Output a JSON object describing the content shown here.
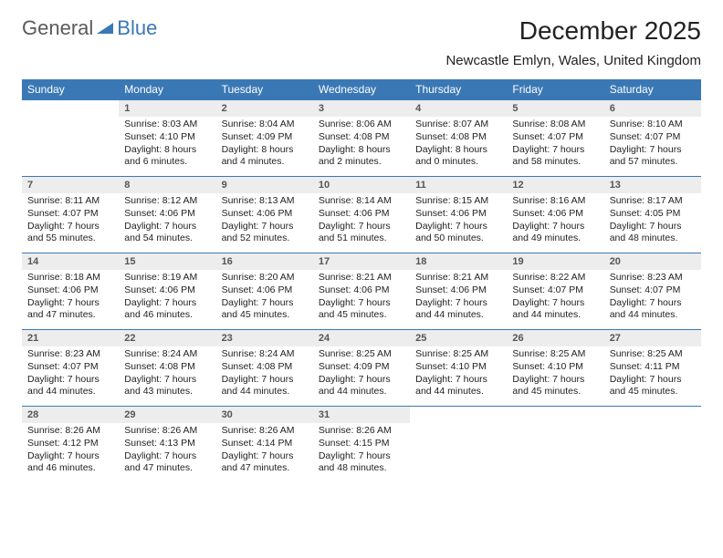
{
  "logo": {
    "text1": "General",
    "text2": "Blue"
  },
  "title": "December 2025",
  "location": "Newcastle Emlyn, Wales, United Kingdom",
  "colors": {
    "header_bg": "#3a78b5",
    "header_text": "#ffffff",
    "daynum_bg": "#ededed",
    "daynum_text": "#555555",
    "body_text": "#222222",
    "border": "#3a78b5"
  },
  "weekdays": [
    "Sunday",
    "Monday",
    "Tuesday",
    "Wednesday",
    "Thursday",
    "Friday",
    "Saturday"
  ],
  "weeks": [
    [
      {
        "n": "",
        "sr": "",
        "ss": "",
        "dl": ""
      },
      {
        "n": "1",
        "sr": "Sunrise: 8:03 AM",
        "ss": "Sunset: 4:10 PM",
        "dl": "Daylight: 8 hours and 6 minutes."
      },
      {
        "n": "2",
        "sr": "Sunrise: 8:04 AM",
        "ss": "Sunset: 4:09 PM",
        "dl": "Daylight: 8 hours and 4 minutes."
      },
      {
        "n": "3",
        "sr": "Sunrise: 8:06 AM",
        "ss": "Sunset: 4:08 PM",
        "dl": "Daylight: 8 hours and 2 minutes."
      },
      {
        "n": "4",
        "sr": "Sunrise: 8:07 AM",
        "ss": "Sunset: 4:08 PM",
        "dl": "Daylight: 8 hours and 0 minutes."
      },
      {
        "n": "5",
        "sr": "Sunrise: 8:08 AM",
        "ss": "Sunset: 4:07 PM",
        "dl": "Daylight: 7 hours and 58 minutes."
      },
      {
        "n": "6",
        "sr": "Sunrise: 8:10 AM",
        "ss": "Sunset: 4:07 PM",
        "dl": "Daylight: 7 hours and 57 minutes."
      }
    ],
    [
      {
        "n": "7",
        "sr": "Sunrise: 8:11 AM",
        "ss": "Sunset: 4:07 PM",
        "dl": "Daylight: 7 hours and 55 minutes."
      },
      {
        "n": "8",
        "sr": "Sunrise: 8:12 AM",
        "ss": "Sunset: 4:06 PM",
        "dl": "Daylight: 7 hours and 54 minutes."
      },
      {
        "n": "9",
        "sr": "Sunrise: 8:13 AM",
        "ss": "Sunset: 4:06 PM",
        "dl": "Daylight: 7 hours and 52 minutes."
      },
      {
        "n": "10",
        "sr": "Sunrise: 8:14 AM",
        "ss": "Sunset: 4:06 PM",
        "dl": "Daylight: 7 hours and 51 minutes."
      },
      {
        "n": "11",
        "sr": "Sunrise: 8:15 AM",
        "ss": "Sunset: 4:06 PM",
        "dl": "Daylight: 7 hours and 50 minutes."
      },
      {
        "n": "12",
        "sr": "Sunrise: 8:16 AM",
        "ss": "Sunset: 4:06 PM",
        "dl": "Daylight: 7 hours and 49 minutes."
      },
      {
        "n": "13",
        "sr": "Sunrise: 8:17 AM",
        "ss": "Sunset: 4:05 PM",
        "dl": "Daylight: 7 hours and 48 minutes."
      }
    ],
    [
      {
        "n": "14",
        "sr": "Sunrise: 8:18 AM",
        "ss": "Sunset: 4:06 PM",
        "dl": "Daylight: 7 hours and 47 minutes."
      },
      {
        "n": "15",
        "sr": "Sunrise: 8:19 AM",
        "ss": "Sunset: 4:06 PM",
        "dl": "Daylight: 7 hours and 46 minutes."
      },
      {
        "n": "16",
        "sr": "Sunrise: 8:20 AM",
        "ss": "Sunset: 4:06 PM",
        "dl": "Daylight: 7 hours and 45 minutes."
      },
      {
        "n": "17",
        "sr": "Sunrise: 8:21 AM",
        "ss": "Sunset: 4:06 PM",
        "dl": "Daylight: 7 hours and 45 minutes."
      },
      {
        "n": "18",
        "sr": "Sunrise: 8:21 AM",
        "ss": "Sunset: 4:06 PM",
        "dl": "Daylight: 7 hours and 44 minutes."
      },
      {
        "n": "19",
        "sr": "Sunrise: 8:22 AM",
        "ss": "Sunset: 4:07 PM",
        "dl": "Daylight: 7 hours and 44 minutes."
      },
      {
        "n": "20",
        "sr": "Sunrise: 8:23 AM",
        "ss": "Sunset: 4:07 PM",
        "dl": "Daylight: 7 hours and 44 minutes."
      }
    ],
    [
      {
        "n": "21",
        "sr": "Sunrise: 8:23 AM",
        "ss": "Sunset: 4:07 PM",
        "dl": "Daylight: 7 hours and 44 minutes."
      },
      {
        "n": "22",
        "sr": "Sunrise: 8:24 AM",
        "ss": "Sunset: 4:08 PM",
        "dl": "Daylight: 7 hours and 43 minutes."
      },
      {
        "n": "23",
        "sr": "Sunrise: 8:24 AM",
        "ss": "Sunset: 4:08 PM",
        "dl": "Daylight: 7 hours and 44 minutes."
      },
      {
        "n": "24",
        "sr": "Sunrise: 8:25 AM",
        "ss": "Sunset: 4:09 PM",
        "dl": "Daylight: 7 hours and 44 minutes."
      },
      {
        "n": "25",
        "sr": "Sunrise: 8:25 AM",
        "ss": "Sunset: 4:10 PM",
        "dl": "Daylight: 7 hours and 44 minutes."
      },
      {
        "n": "26",
        "sr": "Sunrise: 8:25 AM",
        "ss": "Sunset: 4:10 PM",
        "dl": "Daylight: 7 hours and 45 minutes."
      },
      {
        "n": "27",
        "sr": "Sunrise: 8:25 AM",
        "ss": "Sunset: 4:11 PM",
        "dl": "Daylight: 7 hours and 45 minutes."
      }
    ],
    [
      {
        "n": "28",
        "sr": "Sunrise: 8:26 AM",
        "ss": "Sunset: 4:12 PM",
        "dl": "Daylight: 7 hours and 46 minutes."
      },
      {
        "n": "29",
        "sr": "Sunrise: 8:26 AM",
        "ss": "Sunset: 4:13 PM",
        "dl": "Daylight: 7 hours and 47 minutes."
      },
      {
        "n": "30",
        "sr": "Sunrise: 8:26 AM",
        "ss": "Sunset: 4:14 PM",
        "dl": "Daylight: 7 hours and 47 minutes."
      },
      {
        "n": "31",
        "sr": "Sunrise: 8:26 AM",
        "ss": "Sunset: 4:15 PM",
        "dl": "Daylight: 7 hours and 48 minutes."
      },
      {
        "n": "",
        "sr": "",
        "ss": "",
        "dl": ""
      },
      {
        "n": "",
        "sr": "",
        "ss": "",
        "dl": ""
      },
      {
        "n": "",
        "sr": "",
        "ss": "",
        "dl": ""
      }
    ]
  ]
}
